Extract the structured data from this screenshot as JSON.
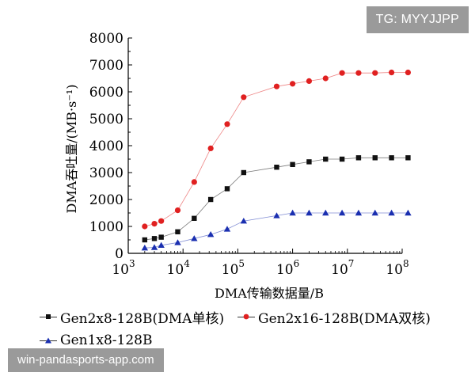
{
  "watermarks": {
    "top": "TG: MYYJJPP",
    "bottom": "win-pandasports-app.com"
  },
  "chart_data": {
    "type": "scatter",
    "xlabel": "DMA传输数据量/B",
    "ylabel": "DMA吞吐量/(MB·s⁻¹)",
    "xscale": "log",
    "xlim": [
      1000,
      100000000
    ],
    "ylim": [
      0,
      8000
    ],
    "x_ticks": [
      {
        "base": "10",
        "exp": "3"
      },
      {
        "base": "10",
        "exp": "4"
      },
      {
        "base": "10",
        "exp": "5"
      },
      {
        "base": "10",
        "exp": "6"
      },
      {
        "base": "10",
        "exp": "7"
      },
      {
        "base": "10",
        "exp": "8"
      }
    ],
    "y_ticks": [
      "0",
      "1000",
      "2000",
      "3000",
      "4000",
      "5000",
      "6000",
      "7000",
      "8000"
    ],
    "grid": false,
    "legend_position": "bottom",
    "series": [
      {
        "name": "Gen2x8-128B(DMA单核)",
        "marker": "square",
        "color": "#111111",
        "x": [
          2000,
          3000,
          4000,
          8000,
          16000,
          32000,
          64000,
          128000,
          512000,
          1000000,
          2000000,
          4000000,
          8000000,
          16000000,
          32000000,
          64000000,
          128000000
        ],
        "y": [
          500,
          550,
          600,
          800,
          1300,
          2000,
          2400,
          3000,
          3200,
          3300,
          3400,
          3500,
          3500,
          3550,
          3550,
          3550,
          3550
        ]
      },
      {
        "name": "Gen2x16-128B(DMA双核)",
        "marker": "circle",
        "color": "#e02020",
        "x": [
          2000,
          3000,
          4000,
          8000,
          16000,
          32000,
          64000,
          128000,
          512000,
          1000000,
          2000000,
          4000000,
          8000000,
          16000000,
          32000000,
          64000000,
          128000000
        ],
        "y": [
          1000,
          1100,
          1200,
          1600,
          2650,
          3900,
          4800,
          5800,
          6200,
          6300,
          6400,
          6500,
          6700,
          6700,
          6700,
          6720,
          6720
        ]
      },
      {
        "name": "Gen1x8-128B",
        "marker": "triangle",
        "color": "#1a2fb0",
        "x": [
          2000,
          3000,
          4000,
          8000,
          16000,
          32000,
          64000,
          128000,
          512000,
          1000000,
          2000000,
          4000000,
          8000000,
          16000000,
          32000000,
          64000000,
          128000000
        ],
        "y": [
          200,
          220,
          300,
          400,
          550,
          700,
          900,
          1200,
          1400,
          1500,
          1500,
          1500,
          1500,
          1500,
          1500,
          1500,
          1500
        ]
      }
    ]
  }
}
